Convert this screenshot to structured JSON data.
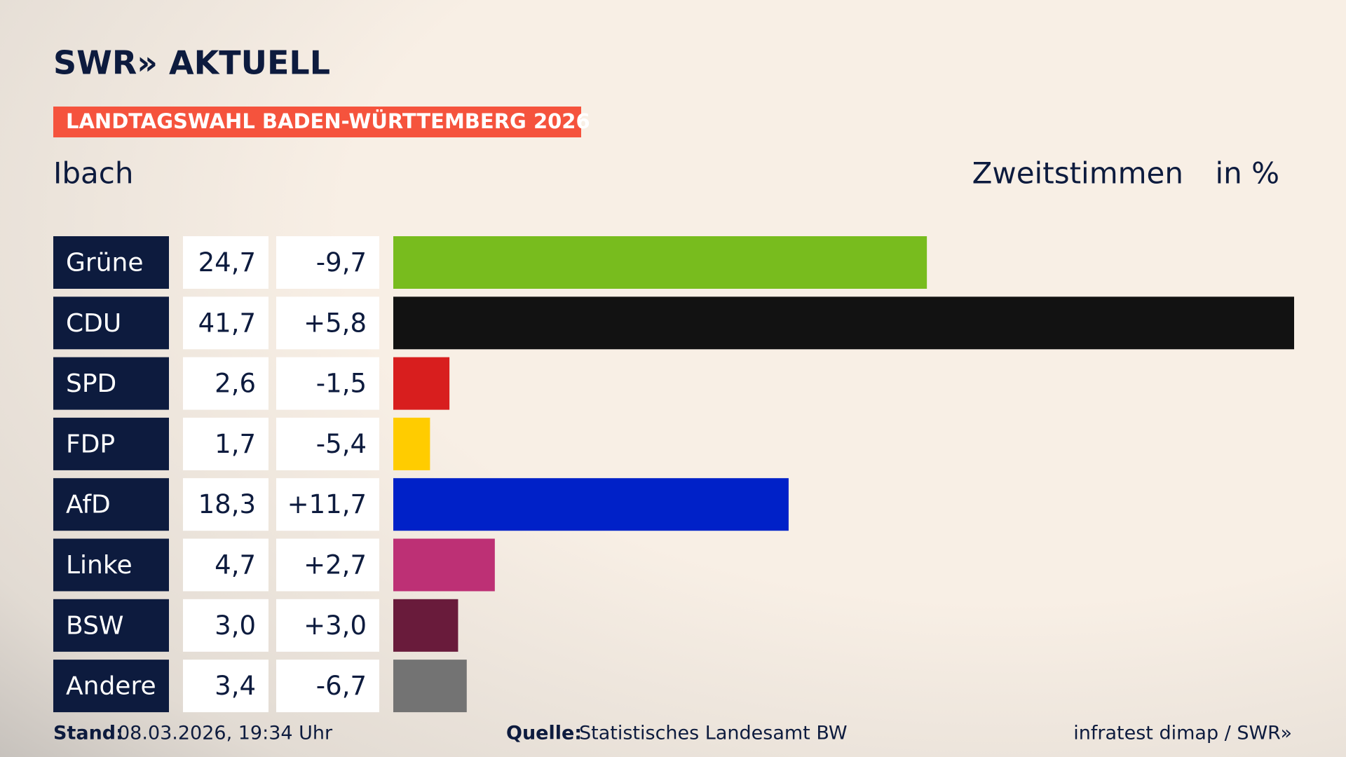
{
  "header": {
    "logo": "SWR» AKTUELL",
    "banner": "LANDTAGSWAHL BADEN-WÜRTTEMBERG 2026"
  },
  "chart_data": {
    "type": "bar",
    "title": "Ibach",
    "subtitle": "Zweitstimmen",
    "unit": "in %",
    "categories": [
      "Grüne",
      "CDU",
      "SPD",
      "FDP",
      "AfD",
      "Linke",
      "BSW",
      "Andere"
    ],
    "values": [
      24.7,
      41.7,
      2.6,
      1.7,
      18.3,
      4.7,
      3.0,
      3.4
    ],
    "value_labels": [
      "24,7",
      "41,7",
      "2,6",
      "1,7",
      "18,3",
      "4,7",
      "3,0",
      "3,4"
    ],
    "changes": [
      -9.7,
      5.8,
      -1.5,
      -5.4,
      11.7,
      2.7,
      3.0,
      -6.7
    ],
    "change_labels": [
      "-9,7",
      "+5,8",
      "-1,5",
      "-5,4",
      "+11,7",
      "+2,7",
      "+3,0",
      "-6,7"
    ],
    "colors": [
      "#78bc1e",
      "#121212",
      "#d81e1e",
      "#ffcc00",
      "#0021c8",
      "#bd3075",
      "#691b3b",
      "#737373"
    ],
    "xlim": [
      0,
      41.7
    ]
  },
  "footer": {
    "stand_label": "Stand:",
    "stand": "08.03.2026, 19:34 Uhr",
    "source_label": "Quelle:",
    "source": "Statistisches Landesamt BW",
    "credit": "infratest dimap / SWR»"
  }
}
